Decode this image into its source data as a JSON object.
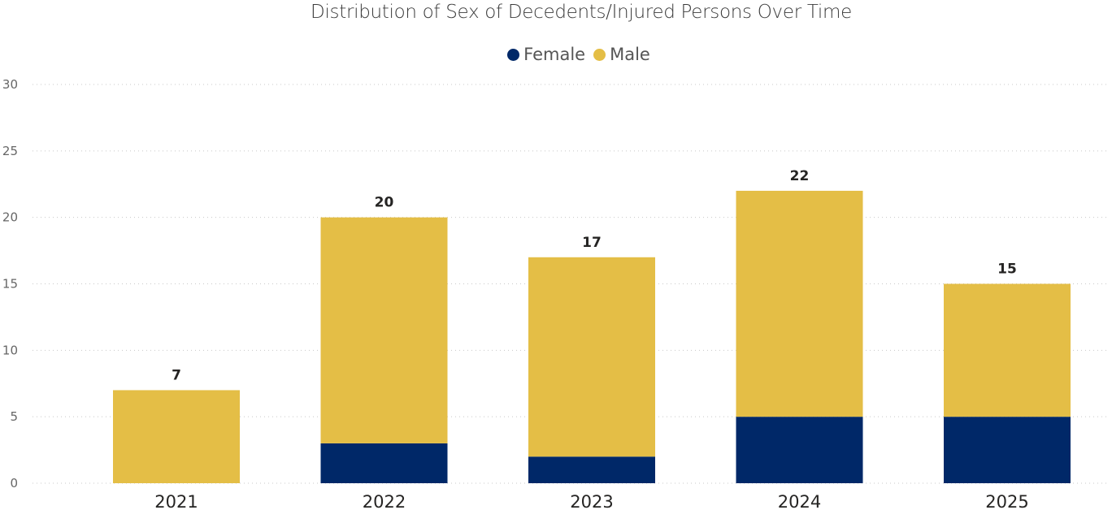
{
  "chart_data": {
    "type": "bar",
    "stacked": true,
    "title": "Distribution of Sex of Decedents/Injured Persons Over Time",
    "xlabel": "",
    "ylabel": "",
    "ylim": [
      0,
      30
    ],
    "yticks": [
      0,
      5,
      10,
      15,
      20,
      25,
      30
    ],
    "grid": true,
    "legend_position": "top-center",
    "categories": [
      "2021",
      "2022",
      "2023",
      "2024",
      "2025"
    ],
    "series": [
      {
        "name": "Female",
        "color": "#002868",
        "values": [
          0,
          3,
          2,
          5,
          5
        ]
      },
      {
        "name": "Male",
        "color": "#e4be46",
        "values": [
          7,
          17,
          15,
          17,
          10
        ]
      }
    ],
    "totals": [
      7,
      20,
      17,
      22,
      15
    ]
  }
}
